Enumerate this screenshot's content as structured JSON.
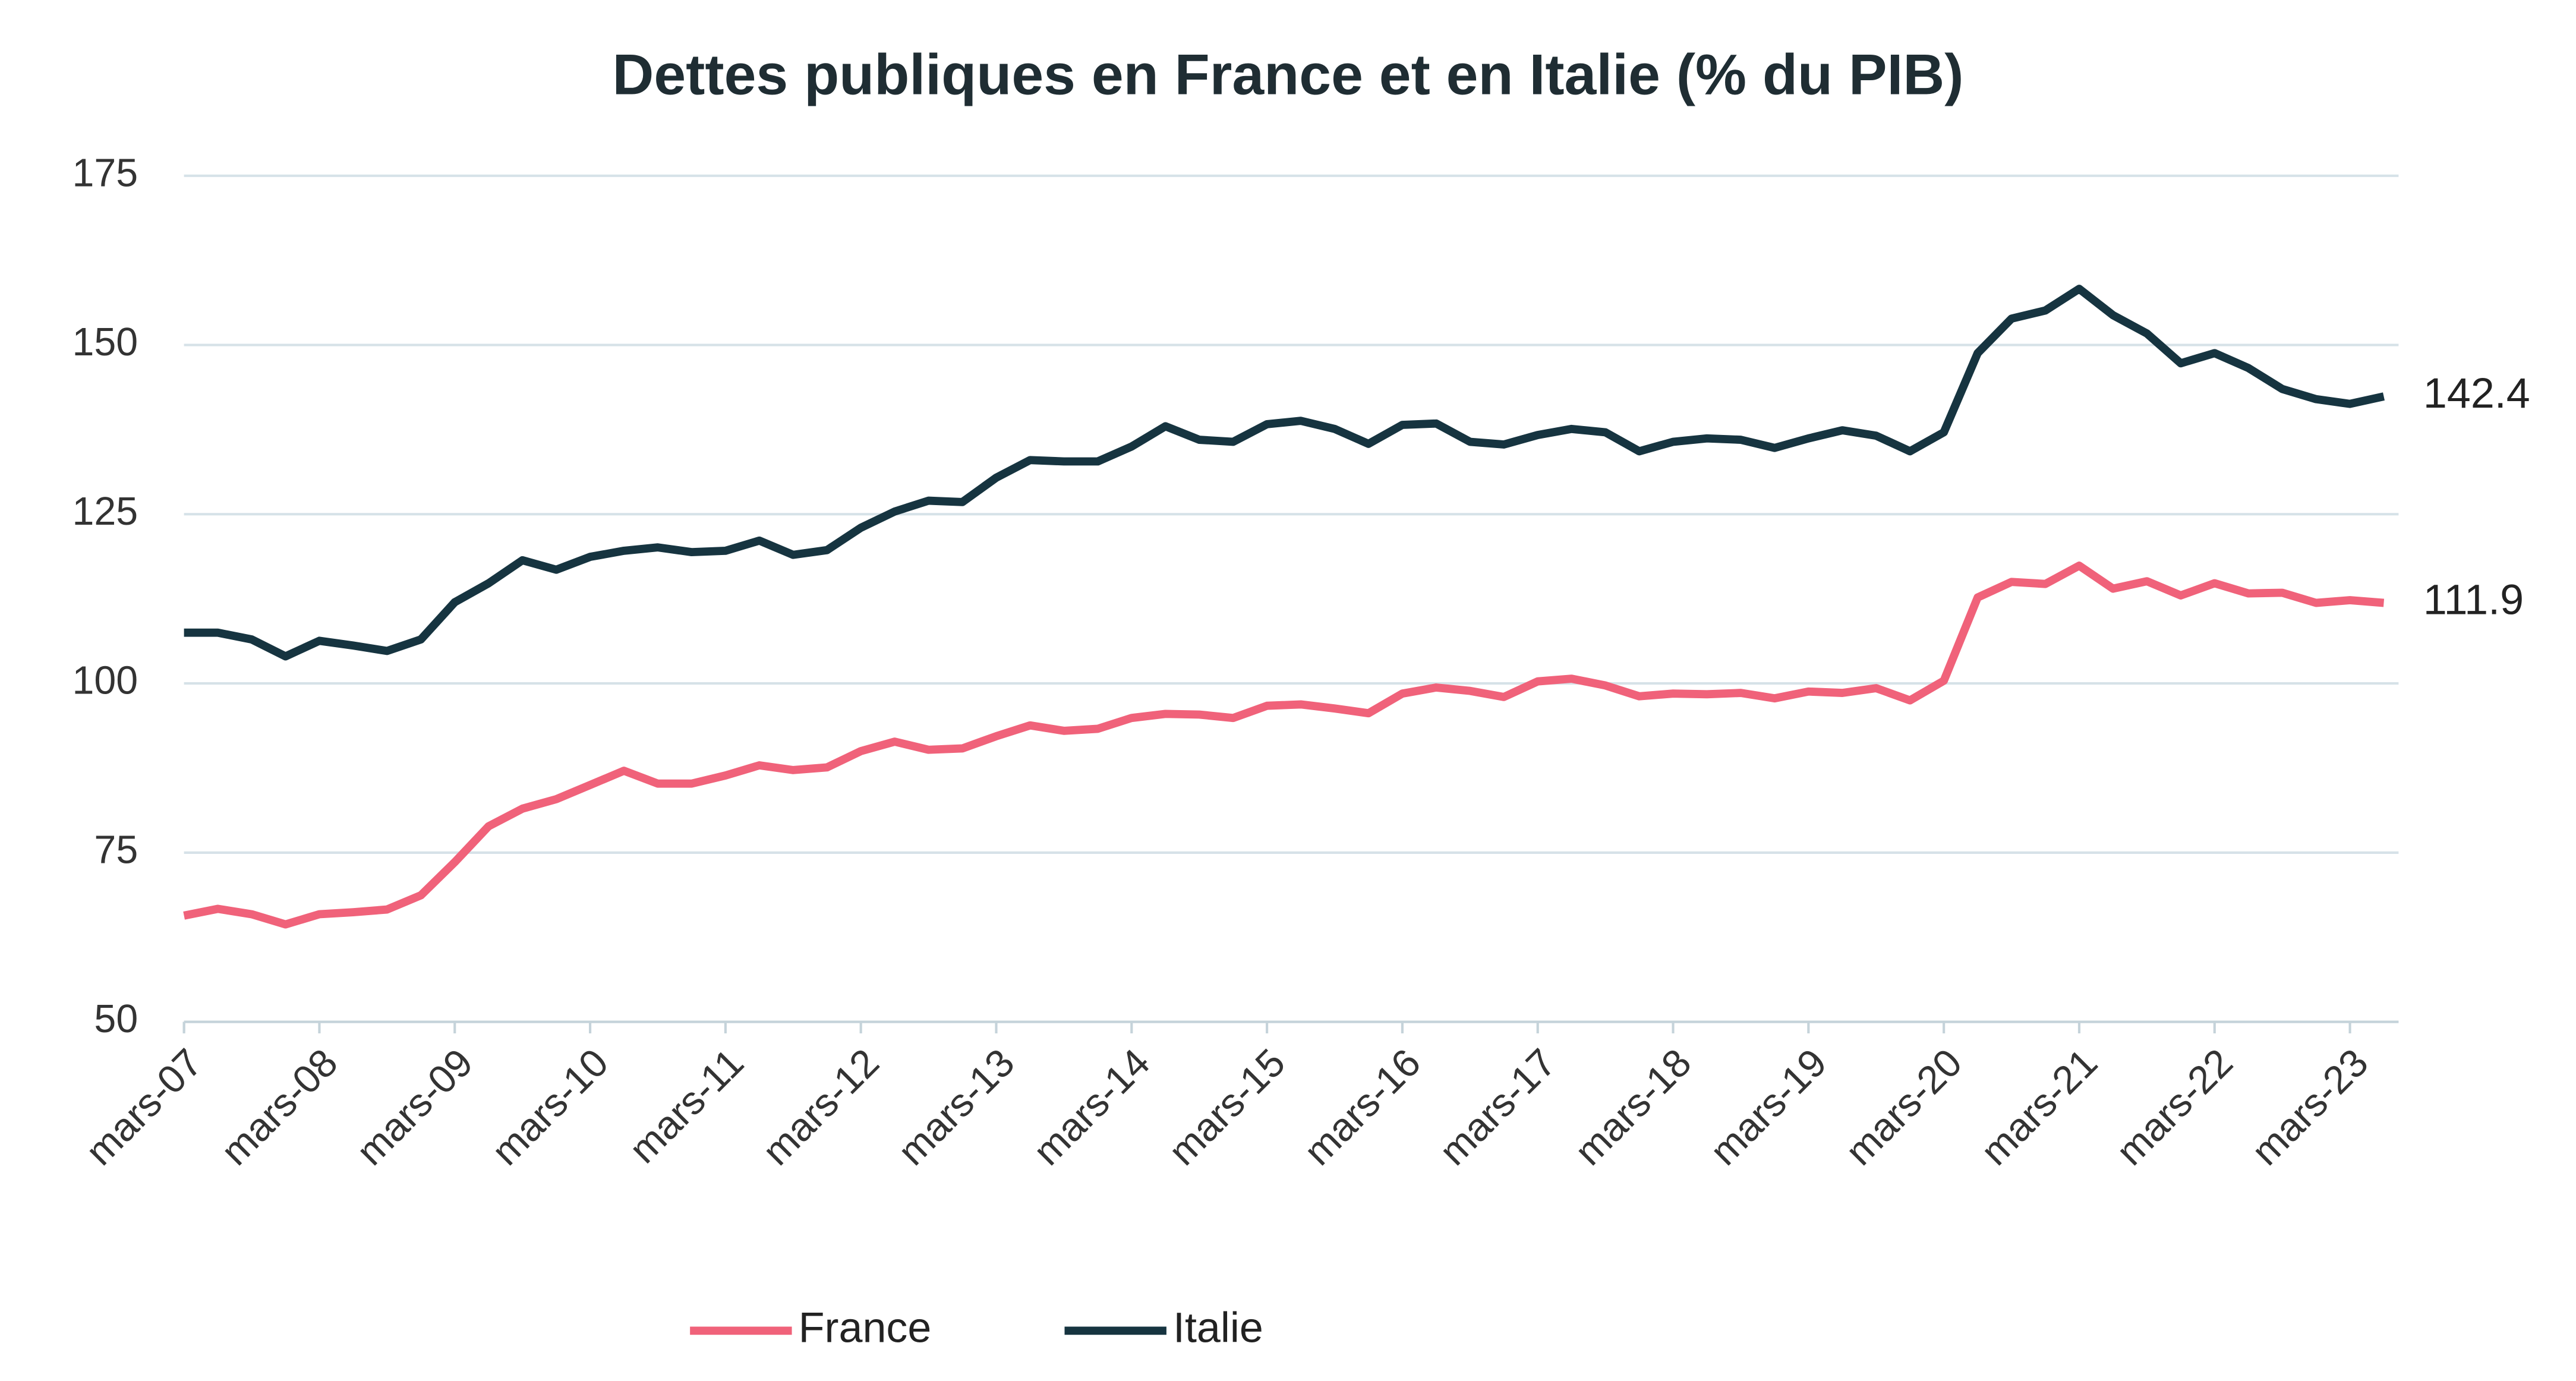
{
  "chart_data": {
    "type": "line",
    "title": "Dettes publiques en France et en Italie (% du PIB)",
    "categories": [
      "mars-07",
      null,
      null,
      null,
      "mars-08",
      null,
      null,
      null,
      "mars-09",
      null,
      null,
      null,
      "mars-10",
      null,
      null,
      null,
      "mars-11",
      null,
      null,
      null,
      "mars-12",
      null,
      null,
      null,
      "mars-13",
      null,
      null,
      null,
      "mars-14",
      null,
      null,
      null,
      "mars-15",
      null,
      null,
      null,
      "mars-16",
      null,
      null,
      null,
      "mars-17",
      null,
      null,
      null,
      "mars-18",
      null,
      null,
      null,
      "mars-19",
      null,
      null,
      null,
      "mars-20",
      null,
      null,
      null,
      "mars-21",
      null,
      null,
      null,
      "mars-22",
      null,
      null,
      null,
      "mars-23",
      null
    ],
    "series": [
      {
        "name": "France",
        "color": "#f0627a",
        "values": [
          65.7,
          66.7,
          65.9,
          64.4,
          65.9,
          66.2,
          66.6,
          68.7,
          73.6,
          78.9,
          81.5,
          82.9,
          85,
          87.1,
          85.2,
          85.2,
          86.4,
          87.9,
          87.2,
          87.6,
          90,
          91.4,
          90.2,
          90.4,
          92.2,
          93.8,
          93,
          93.3,
          94.9,
          95.5,
          95.4,
          94.9,
          96.7,
          96.9,
          96.3,
          95.6,
          98.5,
          99.4,
          98.9,
          98,
          100.3,
          100.7,
          99.7,
          98.1,
          98.5,
          98.4,
          98.6,
          97.8,
          98.8,
          98.6,
          99.3,
          97.5,
          100.4,
          112.7,
          115,
          114.7,
          117.4,
          114,
          115.1,
          113,
          114.8,
          113.3,
          113.4,
          111.9,
          112.3,
          111.9
        ]
      },
      {
        "name": "Italie",
        "color": "#163440",
        "values": [
          107.5,
          107.5,
          106.5,
          104,
          106.3,
          105.6,
          104.8,
          106.5,
          112,
          114.8,
          118.2,
          116.8,
          118.7,
          119.6,
          120.1,
          119.4,
          119.6,
          121.1,
          119,
          119.7,
          123,
          125.4,
          127,
          126.8,
          130.4,
          133,
          132.8,
          132.8,
          135,
          138,
          136,
          135.7,
          138.3,
          138.8,
          137.6,
          135.4,
          138.2,
          138.4,
          135.7,
          135.3,
          136.7,
          137.6,
          137.1,
          134.3,
          135.7,
          136.2,
          136,
          134.8,
          136.2,
          137.4,
          136.6,
          134.3,
          137.1,
          148.8,
          153.9,
          155.1,
          158.3,
          154.4,
          151.7,
          147.3,
          148.8,
          146.6,
          143.5,
          142,
          141.3,
          142.4
        ]
      }
    ],
    "ylim": [
      50,
      175
    ],
    "yticks": [
      50,
      75,
      100,
      125,
      150,
      175
    ],
    "grid": true,
    "legend": "bottom"
  }
}
